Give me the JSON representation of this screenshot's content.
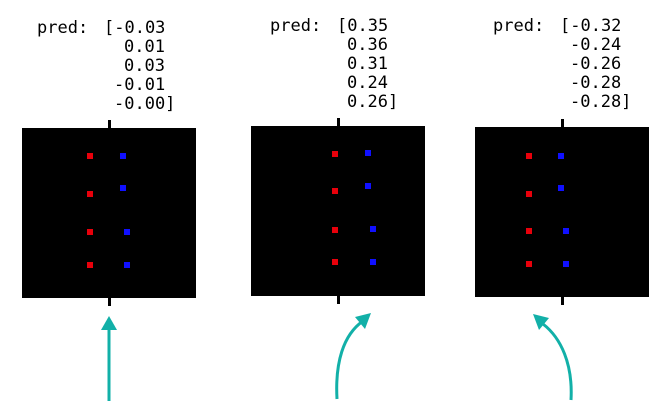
{
  "panels": [
    {
      "id": "left",
      "pred_label": "pred:",
      "pred_values": [
        "[-0.03",
        "0.01",
        "0.03",
        "-0.01",
        "-0.00]"
      ],
      "arrow": "straight-up",
      "dot_colors": {
        "left": "#e8000b",
        "right": "#1010ff"
      }
    },
    {
      "id": "middle",
      "pred_label": "pred:",
      "pred_values": [
        "[0.35",
        "0.36",
        "0.31",
        "0.24",
        "0.26]"
      ],
      "arrow": "curved-right",
      "dot_colors": {
        "left": "#e8000b",
        "right": "#1010ff"
      }
    },
    {
      "id": "right",
      "pred_label": "pred:",
      "pred_values": [
        "[-0.32",
        "-0.24",
        "-0.26",
        "-0.28",
        "-0.28]"
      ],
      "arrow": "curved-left",
      "dot_colors": {
        "left": "#e8000b",
        "right": "#1010ff"
      }
    }
  ],
  "colors": {
    "background": "#ffffff",
    "panel": "#000000",
    "arrow": "#12b0a8",
    "red_dot": "#e8000b",
    "blue_dot": "#1010ff"
  }
}
